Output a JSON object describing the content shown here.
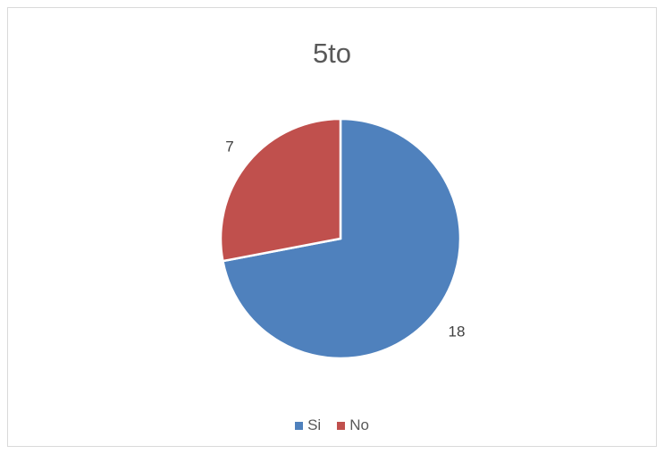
{
  "chart_data": {
    "type": "pie",
    "title": "5to",
    "categories": [
      "Si",
      "No"
    ],
    "values": [
      18,
      7
    ],
    "colors": [
      "#4f81bd",
      "#c0504d"
    ],
    "data_labels": [
      "18",
      "7"
    ],
    "legend": "bottom"
  }
}
